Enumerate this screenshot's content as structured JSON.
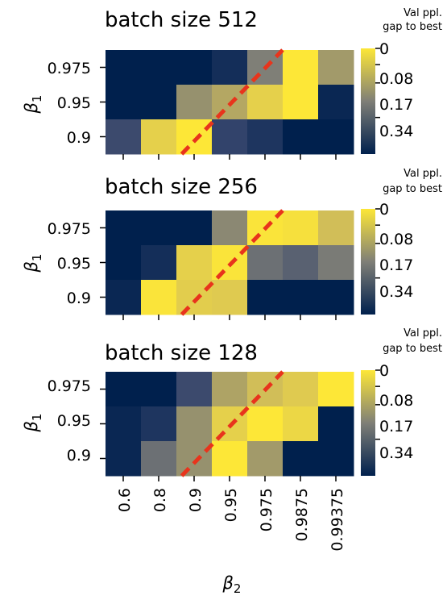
{
  "chart_data": [
    {
      "type": "heatmap",
      "title": "batch size 512",
      "x": [
        "0.6",
        "0.8",
        "0.9",
        "0.95",
        "0.975",
        "0.9875",
        "0.99375"
      ],
      "y": [
        "0.975",
        "0.95",
        "0.9"
      ],
      "values": [
        [
          0.52,
          0.52,
          0.52,
          0.48,
          0.26,
          0.0,
          0.2
        ],
        [
          0.52,
          0.52,
          0.22,
          0.17,
          0.07,
          0.0,
          0.5
        ],
        [
          0.4,
          0.07,
          0.0,
          0.42,
          0.46,
          0.52,
          0.52
        ]
      ],
      "colorbar": {
        "title": [
          "Val ppl.",
          "gap to best"
        ],
        "ticks": [
          "0",
          "0.08",
          "0.17",
          "0.34"
        ]
      },
      "ylabel": "β",
      "ylabel_sub": "1"
    },
    {
      "type": "heatmap",
      "title": "batch size 256",
      "x": [
        "0.6",
        "0.8",
        "0.9",
        "0.95",
        "0.975",
        "0.9875",
        "0.99375"
      ],
      "y": [
        "0.975",
        "0.95",
        "0.9"
      ],
      "values": [
        [
          0.52,
          0.52,
          0.52,
          0.24,
          0.01,
          0.02,
          0.12
        ],
        [
          0.52,
          0.48,
          0.07,
          0.01,
          0.3,
          0.34,
          0.27
        ],
        [
          0.5,
          0.01,
          0.08,
          0.09,
          0.52,
          0.52,
          0.52
        ]
      ],
      "colorbar": {
        "title": [
          "Val ppl.",
          "gap to best"
        ],
        "ticks": [
          "0",
          "0.08",
          "0.17",
          "0.34"
        ]
      },
      "ylabel": "β",
      "ylabel_sub": "1"
    },
    {
      "type": "heatmap",
      "title": "batch size 128",
      "x": [
        "0.6",
        "0.8",
        "0.9",
        "0.95",
        "0.975",
        "0.9875",
        "0.99375"
      ],
      "y": [
        "0.975",
        "0.95",
        "0.9"
      ],
      "values": [
        [
          0.52,
          0.52,
          0.4,
          0.18,
          0.12,
          0.09,
          0.0
        ],
        [
          0.5,
          0.46,
          0.22,
          0.07,
          0.0,
          0.05,
          0.52
        ],
        [
          0.5,
          0.3,
          0.22,
          0.0,
          0.2,
          0.52,
          0.52
        ]
      ],
      "colorbar": {
        "title": [
          "Val ppl.",
          "gap to best"
        ],
        "ticks": [
          "0",
          "0.08",
          "0.17",
          "0.34"
        ]
      },
      "ylabel": "β",
      "ylabel_sub": "1",
      "xlabel": "β",
      "xlabel_sub": "2"
    }
  ],
  "colors": {
    "diagonal": "#e8341c"
  }
}
